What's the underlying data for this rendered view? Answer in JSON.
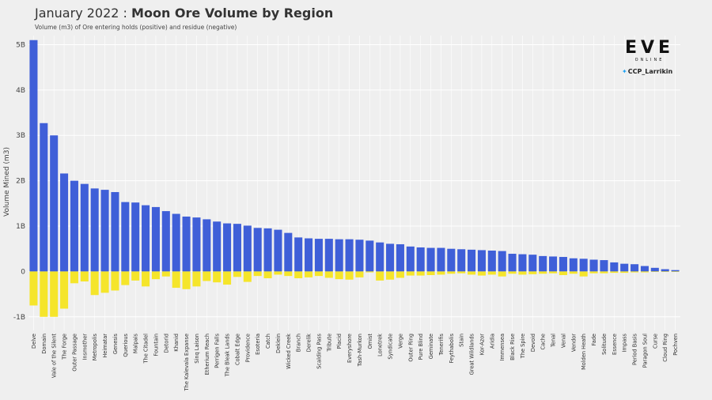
{
  "header": {
    "title_prefix": "January 2022 : ",
    "title_main": "Moon Ore Volume by Region",
    "subtitle": "Volume (m3) of Ore entering holds (positive) and residue (negative)"
  },
  "brand": {
    "logo_text": "EVE",
    "logo_sub": "ONLINE",
    "twitter_handle": "CCP_Larrikin"
  },
  "colors": {
    "positive": "#3f5fd8",
    "negative": "#f5e52b",
    "background": "#efefef",
    "grid": "#ffffff"
  },
  "chart_data": {
    "type": "bar",
    "title": "",
    "xlabel": "",
    "ylabel": "Volume Mined (m3)",
    "ylim": [
      -1.3,
      5.2
    ],
    "y_ticks": [
      -1,
      0,
      1,
      2,
      3,
      4,
      5
    ],
    "y_tick_labels": [
      "-1B",
      "0",
      "1B",
      "2B",
      "3B",
      "4B",
      "5B"
    ],
    "y_unit": "billions m3",
    "grid": true,
    "categories": [
      "Delve",
      "Domain",
      "Vale of the Silent",
      "The Forge",
      "Outer Passage",
      "Insmother",
      "Metropolis",
      "Heimatar",
      "Genesis",
      "Querious",
      "Malpais",
      "The Citadel",
      "Fountain",
      "Detorid",
      "Khanid",
      "The Kalevala Expanse",
      "Sinq Laison",
      "Etherium Reach",
      "Perrigen Falls",
      "The Bleak Lands",
      "Cobalt Edge",
      "Providence",
      "Esoteria",
      "Catch",
      "Deklein",
      "Wicked Creek",
      "Branch",
      "Derelik",
      "Scalding Pass",
      "Tribute",
      "Placid",
      "Everyshore",
      "Tash-Murkon",
      "Omist",
      "Lonetrek",
      "Syndicate",
      "Verge",
      "Outer Ring",
      "Pure Blind",
      "Geminate",
      "Tenerifis",
      "Feythabolis",
      "Stain",
      "Great Wildlands",
      "Kor-Azor",
      "Aridia",
      "Immensea",
      "Black Rise",
      "The Spire",
      "Devoid",
      "Cache",
      "Tenal",
      "Venal",
      "Vendor",
      "Molden Heath",
      "Fade",
      "Solitude",
      "Essence",
      "Impass",
      "Period Basis",
      "Paragon Soul",
      "Curse",
      "Cloud Ring",
      "Pochven"
    ],
    "series": [
      {
        "values": [
          5.1,
          3.27,
          3.0,
          2.16,
          2.0,
          1.93,
          1.83,
          1.8,
          1.75,
          1.53,
          1.52,
          1.46,
          1.42,
          1.33,
          1.27,
          1.21,
          1.19,
          1.15,
          1.1,
          1.06,
          1.05,
          1.01,
          0.96,
          0.95,
          0.92,
          0.85,
          0.75,
          0.73,
          0.72,
          0.72,
          0.71,
          0.71,
          0.7,
          0.68,
          0.64,
          0.61,
          0.6,
          0.55,
          0.53,
          0.52,
          0.52,
          0.5,
          0.49,
          0.48,
          0.47,
          0.46,
          0.45,
          0.39,
          0.38,
          0.37,
          0.34,
          0.33,
          0.32,
          0.29,
          0.28,
          0.26,
          0.25,
          0.2,
          0.17,
          0.16,
          0.12,
          0.08,
          0.05,
          0.03
        ]
      },
      {
        "values": [
          -0.75,
          -1.0,
          -1.0,
          -0.82,
          -0.26,
          -0.22,
          -0.52,
          -0.47,
          -0.42,
          -0.3,
          -0.2,
          -0.33,
          -0.17,
          -0.11,
          -0.36,
          -0.39,
          -0.33,
          -0.21,
          -0.24,
          -0.29,
          -0.12,
          -0.23,
          -0.1,
          -0.15,
          -0.07,
          -0.1,
          -0.15,
          -0.13,
          -0.1,
          -0.14,
          -0.17,
          -0.18,
          -0.13,
          -0.02,
          -0.2,
          -0.18,
          -0.14,
          -0.09,
          -0.09,
          -0.08,
          -0.07,
          -0.05,
          -0.04,
          -0.07,
          -0.09,
          -0.07,
          -0.11,
          -0.05,
          -0.07,
          -0.06,
          -0.05,
          -0.04,
          -0.08,
          -0.05,
          -0.11,
          -0.04,
          -0.04,
          -0.03,
          -0.03,
          -0.02,
          -0.02,
          -0.01,
          -0.01,
          -0.01
        ]
      }
    ]
  }
}
